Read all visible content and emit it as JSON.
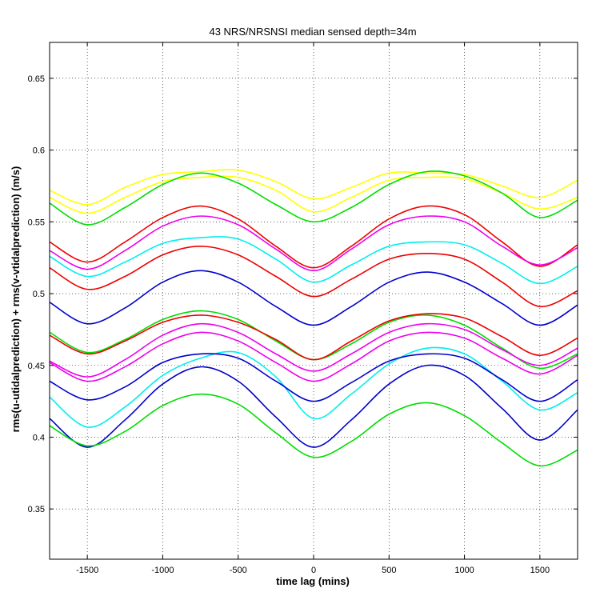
{
  "chart_data": {
    "type": "line",
    "title": "43 NRS/NRSNSI median sensed depth=34m",
    "xlabel": "time lag (mins)",
    "ylabel": "rms(u-utidalprediction) + rms(v-vtidalprediction) (m/s)",
    "xlim": [
      -1750,
      1750
    ],
    "ylim": [
      0.315,
      0.675
    ],
    "xticks": [
      -1500,
      -1000,
      -500,
      0,
      500,
      1000,
      1500
    ],
    "yticks": [
      0.35,
      0.4,
      0.45,
      0.5,
      0.55,
      0.6,
      0.65
    ],
    "xtick_labels": [
      "-1500",
      "-1000",
      "-500",
      "0",
      "500",
      "1000",
      "1500"
    ],
    "ytick_labels": [
      "0.35",
      "0.4",
      "0.45",
      "0.5",
      "0.55",
      "0.6",
      "0.65"
    ],
    "grid": true,
    "x": [
      -1750,
      -1500,
      -1250,
      -1000,
      -750,
      -500,
      -250,
      0,
      250,
      500,
      750,
      1000,
      1250,
      1500,
      1750
    ],
    "series": [
      {
        "color": "#ffff00",
        "values": [
          0.572,
          0.562,
          0.574,
          0.583,
          0.585,
          0.586,
          0.578,
          0.566,
          0.574,
          0.584,
          0.584,
          0.583,
          0.575,
          0.567,
          0.579
        ]
      },
      {
        "color": "#ffff00",
        "values": [
          0.567,
          0.556,
          0.567,
          0.578,
          0.581,
          0.581,
          0.572,
          0.557,
          0.567,
          0.579,
          0.581,
          0.58,
          0.57,
          0.559,
          0.567
        ]
      },
      {
        "color": "#00dd00",
        "values": [
          0.563,
          0.548,
          0.56,
          0.576,
          0.584,
          0.577,
          0.562,
          0.55,
          0.56,
          0.576,
          0.585,
          0.582,
          0.57,
          0.553,
          0.565
        ]
      },
      {
        "color": "#ee0000",
        "values": [
          0.536,
          0.522,
          0.536,
          0.553,
          0.561,
          0.552,
          0.533,
          0.518,
          0.533,
          0.552,
          0.561,
          0.555,
          0.536,
          0.519,
          0.534
        ]
      },
      {
        "color": "#ee00ee",
        "values": [
          0.53,
          0.517,
          0.53,
          0.547,
          0.554,
          0.548,
          0.531,
          0.516,
          0.531,
          0.548,
          0.554,
          0.55,
          0.533,
          0.52,
          0.532
        ]
      },
      {
        "color": "#00eeee",
        "values": [
          0.526,
          0.512,
          0.522,
          0.535,
          0.539,
          0.538,
          0.524,
          0.508,
          0.52,
          0.533,
          0.536,
          0.534,
          0.521,
          0.507,
          0.519
        ]
      },
      {
        "color": "#ee0000",
        "values": [
          0.518,
          0.503,
          0.512,
          0.527,
          0.533,
          0.527,
          0.512,
          0.498,
          0.51,
          0.524,
          0.528,
          0.524,
          0.508,
          0.491,
          0.502
        ]
      },
      {
        "color": "#0000cc",
        "values": [
          0.494,
          0.479,
          0.49,
          0.508,
          0.516,
          0.508,
          0.491,
          0.478,
          0.491,
          0.508,
          0.515,
          0.508,
          0.493,
          0.478,
          0.492
        ]
      },
      {
        "color": "#00dd00",
        "values": [
          0.473,
          0.459,
          0.468,
          0.482,
          0.488,
          0.482,
          0.467,
          0.454,
          0.465,
          0.48,
          0.485,
          0.478,
          0.462,
          0.448,
          0.458
        ]
      },
      {
        "color": "#ee0000",
        "values": [
          0.471,
          0.458,
          0.467,
          0.48,
          0.485,
          0.48,
          0.468,
          0.454,
          0.467,
          0.481,
          0.486,
          0.483,
          0.47,
          0.457,
          0.469
        ]
      },
      {
        "color": "#ee00ee",
        "values": [
          0.453,
          0.442,
          0.454,
          0.471,
          0.479,
          0.473,
          0.458,
          0.446,
          0.458,
          0.473,
          0.479,
          0.475,
          0.461,
          0.45,
          0.462
        ]
      },
      {
        "color": "#ee00ee",
        "values": [
          0.452,
          0.439,
          0.449,
          0.465,
          0.473,
          0.467,
          0.452,
          0.439,
          0.451,
          0.467,
          0.473,
          0.469,
          0.455,
          0.444,
          0.457
        ]
      },
      {
        "color": "#00eeee",
        "values": [
          0.428,
          0.407,
          0.421,
          0.443,
          0.455,
          0.459,
          0.442,
          0.413,
          0.43,
          0.451,
          0.462,
          0.458,
          0.439,
          0.419,
          0.431
        ]
      },
      {
        "color": "#0000cc",
        "values": [
          0.439,
          0.426,
          0.435,
          0.452,
          0.458,
          0.455,
          0.439,
          0.425,
          0.438,
          0.453,
          0.458,
          0.455,
          0.44,
          0.425,
          0.44
        ]
      },
      {
        "color": "#0000cc",
        "values": [
          0.413,
          0.393,
          0.412,
          0.437,
          0.449,
          0.439,
          0.414,
          0.393,
          0.412,
          0.437,
          0.45,
          0.443,
          0.42,
          0.398,
          0.419
        ]
      },
      {
        "color": "#00dd00",
        "values": [
          0.408,
          0.394,
          0.404,
          0.422,
          0.43,
          0.423,
          0.403,
          0.386,
          0.397,
          0.416,
          0.424,
          0.415,
          0.396,
          0.38,
          0.391
        ]
      }
    ]
  }
}
